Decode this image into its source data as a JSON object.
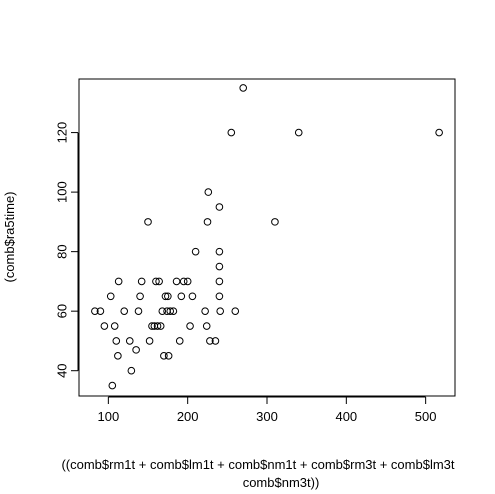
{
  "chart_data": {
    "type": "scatter",
    "title": "",
    "xlabel_lines": [
      "((comb$rm1t + comb$lm1t + comb$nm1t + comb$rm3t + comb$lm3t",
      "comb$nm3t))"
    ],
    "ylabel": "(comb$ra5time)",
    "xlim": [
      63,
      537
    ],
    "ylim": [
      31.5,
      138
    ],
    "x_ticks": [
      100,
      200,
      300,
      400,
      500
    ],
    "y_ticks": [
      40,
      60,
      80,
      100,
      120
    ],
    "grid": false,
    "legend": "none",
    "marker": "open-circle",
    "points": [
      {
        "x": 83,
        "y": 60
      },
      {
        "x": 90,
        "y": 60
      },
      {
        "x": 95,
        "y": 55
      },
      {
        "x": 103,
        "y": 65
      },
      {
        "x": 105,
        "y": 35
      },
      {
        "x": 108,
        "y": 55
      },
      {
        "x": 110,
        "y": 50
      },
      {
        "x": 112,
        "y": 45
      },
      {
        "x": 113,
        "y": 70
      },
      {
        "x": 120,
        "y": 60
      },
      {
        "x": 127,
        "y": 50
      },
      {
        "x": 129,
        "y": 40
      },
      {
        "x": 135,
        "y": 47
      },
      {
        "x": 138,
        "y": 60
      },
      {
        "x": 140,
        "y": 65
      },
      {
        "x": 142,
        "y": 70
      },
      {
        "x": 150,
        "y": 90
      },
      {
        "x": 152,
        "y": 50
      },
      {
        "x": 155,
        "y": 55
      },
      {
        "x": 158,
        "y": 55
      },
      {
        "x": 160,
        "y": 70
      },
      {
        "x": 162,
        "y": 55
      },
      {
        "x": 164,
        "y": 70
      },
      {
        "x": 166,
        "y": 55
      },
      {
        "x": 168,
        "y": 60
      },
      {
        "x": 170,
        "y": 45
      },
      {
        "x": 172,
        "y": 65
      },
      {
        "x": 174,
        "y": 60
      },
      {
        "x": 175,
        "y": 65
      },
      {
        "x": 176,
        "y": 45
      },
      {
        "x": 178,
        "y": 60
      },
      {
        "x": 182,
        "y": 60
      },
      {
        "x": 186,
        "y": 70
      },
      {
        "x": 190,
        "y": 50
      },
      {
        "x": 192,
        "y": 65
      },
      {
        "x": 195,
        "y": 70
      },
      {
        "x": 200,
        "y": 70
      },
      {
        "x": 203,
        "y": 55
      },
      {
        "x": 206,
        "y": 65
      },
      {
        "x": 210,
        "y": 80
      },
      {
        "x": 222,
        "y": 60
      },
      {
        "x": 224,
        "y": 55
      },
      {
        "x": 225,
        "y": 90
      },
      {
        "x": 226,
        "y": 100
      },
      {
        "x": 228,
        "y": 50
      },
      {
        "x": 235,
        "y": 50
      },
      {
        "x": 240,
        "y": 95
      },
      {
        "x": 240,
        "y": 80
      },
      {
        "x": 240,
        "y": 75
      },
      {
        "x": 240,
        "y": 70
      },
      {
        "x": 240,
        "y": 65
      },
      {
        "x": 241,
        "y": 60
      },
      {
        "x": 255,
        "y": 120
      },
      {
        "x": 260,
        "y": 60
      },
      {
        "x": 270,
        "y": 135
      },
      {
        "x": 310,
        "y": 90
      },
      {
        "x": 340,
        "y": 120
      },
      {
        "x": 517,
        "y": 120
      }
    ]
  }
}
